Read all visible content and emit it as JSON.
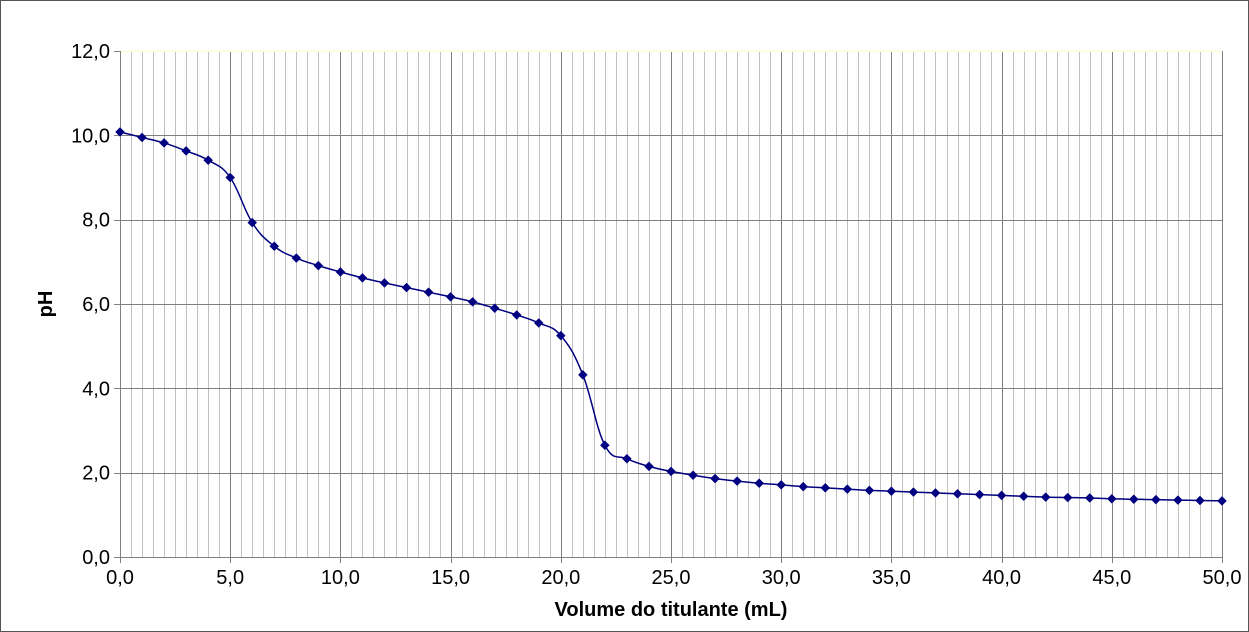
{
  "chart_data": {
    "type": "line",
    "title": "",
    "xlabel": "Volume do titulante (mL)",
    "ylabel": "pH",
    "xlim": [
      0,
      50
    ],
    "ylim": [
      0,
      12
    ],
    "x_major_step": 5,
    "x_minor_step": 0.5,
    "y_major_step": 2,
    "x_tick_labels": [
      "0,0",
      "5,0",
      "10,0",
      "15,0",
      "20,0",
      "25,0",
      "30,0",
      "35,0",
      "40,0",
      "45,0",
      "50,0"
    ],
    "y_tick_labels": [
      "0,0",
      "2,0",
      "4,0",
      "6,0",
      "8,0",
      "10,0",
      "12,0"
    ],
    "grid": true,
    "legend": "none",
    "colors": {
      "series": "#000080",
      "major_grid": "#808080",
      "minor_grid": "#c0c0c0",
      "axis": "#808080",
      "plot_top_border": "#ffffcc"
    },
    "series": [
      {
        "marker": "diamond",
        "x": [
          0,
          1,
          2,
          3,
          4,
          5,
          6,
          7,
          8,
          9,
          10,
          11,
          12,
          13,
          14,
          15,
          16,
          17,
          18,
          19,
          20,
          21,
          22,
          23,
          24,
          25,
          26,
          27,
          28,
          29,
          30,
          31,
          32,
          33,
          34,
          35,
          36,
          37,
          38,
          39,
          40,
          41,
          42,
          43,
          44,
          45,
          46,
          47,
          48,
          49,
          50
        ],
        "y": [
          10.08,
          9.95,
          9.82,
          9.63,
          9.41,
          9.0,
          7.93,
          7.37,
          7.09,
          6.91,
          6.76,
          6.62,
          6.5,
          6.39,
          6.28,
          6.17,
          6.05,
          5.9,
          5.74,
          5.55,
          5.25,
          4.32,
          2.65,
          2.33,
          2.15,
          2.03,
          1.94,
          1.86,
          1.8,
          1.75,
          1.71,
          1.67,
          1.64,
          1.61,
          1.58,
          1.56,
          1.54,
          1.52,
          1.5,
          1.48,
          1.46,
          1.44,
          1.42,
          1.41,
          1.4,
          1.38,
          1.37,
          1.36,
          1.35,
          1.34,
          1.33
        ]
      }
    ]
  }
}
